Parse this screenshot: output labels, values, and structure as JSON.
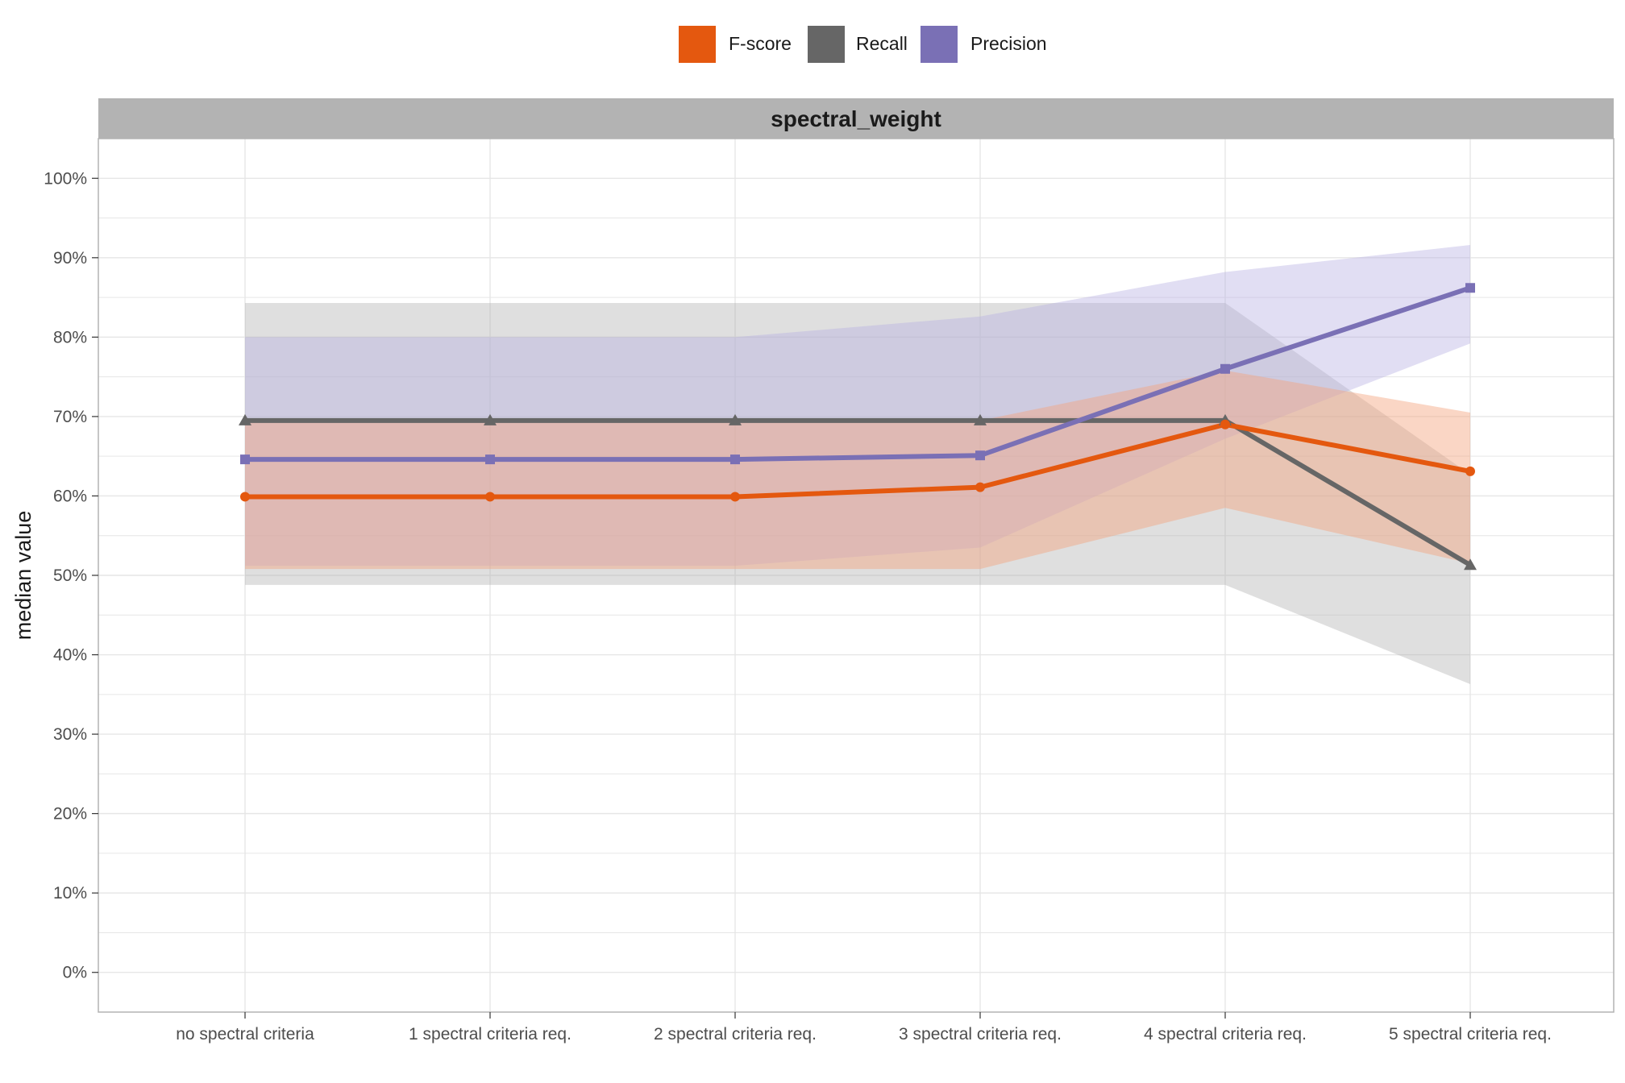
{
  "chart_data": {
    "type": "line",
    "facet_title": "spectral_weight",
    "xlabel": "",
    "ylabel": "median value",
    "categories": [
      "no spectral criteria",
      "1 spectral criteria req.",
      "2 spectral criteria req.",
      "3 spectral criteria req.",
      "4 spectral criteria req.",
      "5 spectral criteria req."
    ],
    "ylim": [
      -0.05,
      1.05
    ],
    "yticks": [
      0,
      0.1,
      0.2,
      0.3,
      0.4,
      0.5,
      0.6,
      0.7,
      0.8,
      0.9,
      1.0
    ],
    "ytick_labels": [
      "0%",
      "10%",
      "20%",
      "30%",
      "40%",
      "50%",
      "60%",
      "70%",
      "80%",
      "90%",
      "100%"
    ],
    "grid": true,
    "legend_position": "top",
    "series": [
      {
        "name": "Recall",
        "color": "#666666",
        "marker": "triangle",
        "values": [
          0.695,
          0.695,
          0.695,
          0.695,
          0.695,
          0.513
        ],
        "band_low": [
          0.488,
          0.488,
          0.488,
          0.488,
          0.488,
          0.363
        ],
        "band_high": [
          0.843,
          0.843,
          0.843,
          0.843,
          0.843,
          0.627
        ]
      },
      {
        "name": "Precision",
        "color": "#7a70b5",
        "marker": "square",
        "values": [
          0.646,
          0.646,
          0.646,
          0.651,
          0.76,
          0.862
        ],
        "band_low": [
          0.512,
          0.512,
          0.512,
          0.535,
          0.672,
          0.792
        ],
        "band_high": [
          0.8,
          0.8,
          0.8,
          0.826,
          0.882,
          0.916
        ]
      },
      {
        "name": "F-score",
        "color": "#e4580f",
        "marker": "circle",
        "values": [
          0.599,
          0.599,
          0.599,
          0.611,
          0.69,
          0.631
        ],
        "band_low": [
          0.508,
          0.508,
          0.508,
          0.508,
          0.585,
          0.515
        ],
        "band_high": [
          0.695,
          0.695,
          0.695,
          0.695,
          0.758,
          0.705
        ]
      }
    ],
    "legend_order": [
      "F-score",
      "Recall",
      "Precision"
    ]
  }
}
